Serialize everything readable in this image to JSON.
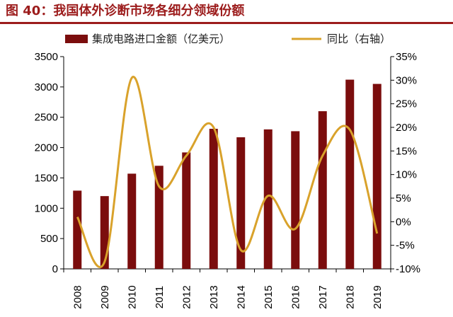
{
  "figure": {
    "title": "图 40：我国体外诊断市场各细分领域份额"
  },
  "chart_data": {
    "type": "bar+line",
    "categories": [
      "2008",
      "2009",
      "2010",
      "2011",
      "2012",
      "2013",
      "2014",
      "2015",
      "2016",
      "2017",
      "2018",
      "2019"
    ],
    "series": [
      {
        "name": "集成电路进口金额（亿美元）",
        "type": "bar",
        "axis": "left",
        "color": "#7b0d0d",
        "values": [
          1290,
          1200,
          1570,
          1700,
          1920,
          2310,
          2170,
          2300,
          2270,
          2600,
          3120,
          3050
        ]
      },
      {
        "name": "同比（右轴）",
        "type": "line",
        "axis": "right",
        "color": "#d9a22b",
        "values": [
          1.0,
          -8.5,
          30.5,
          7.5,
          14.0,
          20.0,
          -6.0,
          5.5,
          -1.5,
          14.0,
          19.5,
          -2.5
        ]
      }
    ],
    "y_left": {
      "min": 0,
      "max": 3500,
      "ticks": [
        "0",
        "500",
        "1000",
        "1500",
        "2000",
        "2500",
        "3000",
        "3500"
      ]
    },
    "y_right": {
      "min": -10,
      "max": 35,
      "ticks": [
        "-10%",
        "-5%",
        "0%",
        "5%",
        "10%",
        "15%",
        "20%",
        "25%",
        "30%",
        "35%"
      ]
    },
    "legend": {
      "position": "top"
    },
    "grid": false
  }
}
